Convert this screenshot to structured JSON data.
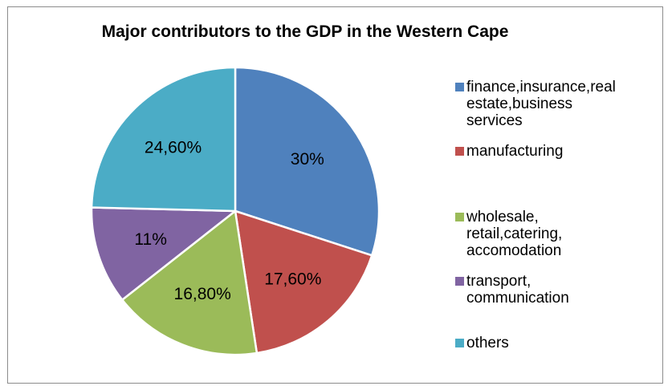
{
  "chart_data": {
    "type": "pie",
    "title": "Major contributors to the GDP in the Western Cape",
    "slices": [
      {
        "label_lines": [
          "finance,insurance,real",
          "estate,business",
          "services"
        ],
        "value": 30,
        "data_label": "30%",
        "color": "#4f81bd"
      },
      {
        "label_lines": [
          "manufacturing"
        ],
        "value": 17.6,
        "data_label": "17,60%",
        "color": "#c0504d"
      },
      {
        "label_lines": [
          "wholesale,",
          "retail,catering,",
          "accomodation"
        ],
        "value": 16.8,
        "data_label": "16,80%",
        "color": "#9bbb59"
      },
      {
        "label_lines": [
          "transport,",
          "communication"
        ],
        "value": 11,
        "data_label": "11%",
        "color": "#8064a2"
      },
      {
        "label_lines": [
          "others"
        ],
        "value": 24.6,
        "data_label": "24,60%",
        "color": "#4bacc6"
      }
    ],
    "legend_position": "right"
  }
}
